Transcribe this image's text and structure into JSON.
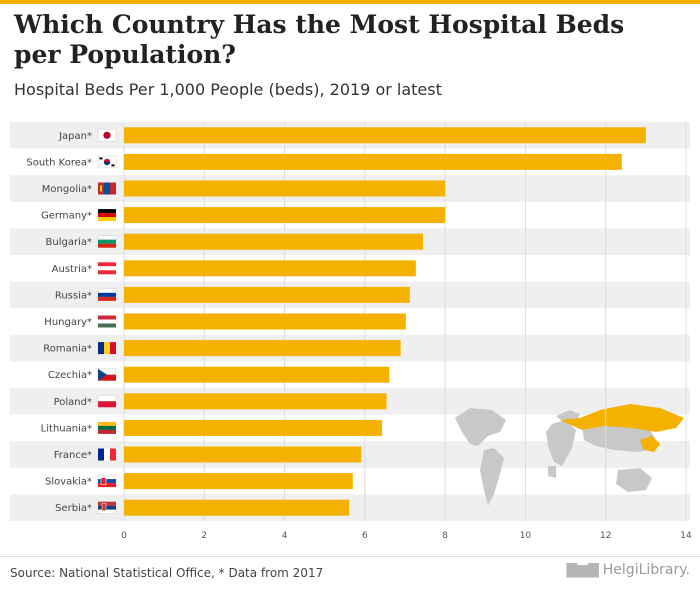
{
  "header": {
    "title": "Which Country Has the Most Hospital Beds per Population?",
    "subtitle": "Hospital Beds Per 1,000 People (beds), 2019 or latest"
  },
  "footer": {
    "source": "Source: National Statistical Office, * Data from 2017",
    "logo_text": "HelgiLibrary."
  },
  "colors": {
    "bar": "#f5b100",
    "row_band": "#efefef",
    "map_land": "#c8c8c8",
    "map_highlight": "#f5b100"
  },
  "chart_data": {
    "type": "bar",
    "orientation": "horizontal",
    "categories": [
      "Japan*",
      "South Korea*",
      "Mongolia*",
      "Germany*",
      "Bulgaria*",
      "Austria*",
      "Russia*",
      "Hungary*",
      "Romania*",
      "Czechia*",
      "Poland*",
      "Lithuania*",
      "France*",
      "Slovakia*",
      "Serbia*"
    ],
    "flags": [
      "japan-flag-icon",
      "south-korea-flag-icon",
      "mongolia-flag-icon",
      "germany-flag-icon",
      "bulgaria-flag-icon",
      "austria-flag-icon",
      "russia-flag-icon",
      "hungary-flag-icon",
      "romania-flag-icon",
      "czechia-flag-icon",
      "poland-flag-icon",
      "lithuania-flag-icon",
      "france-flag-icon",
      "slovakia-flag-icon",
      "serbia-flag-icon"
    ],
    "values": [
      13.0,
      12.4,
      8.0,
      8.0,
      7.45,
      7.27,
      7.12,
      7.02,
      6.89,
      6.61,
      6.54,
      6.43,
      5.91,
      5.7,
      5.61
    ],
    "xlim": [
      0,
      14
    ],
    "xticks": [
      "0",
      "2",
      "4",
      "6",
      "8",
      "10",
      "12",
      "14"
    ],
    "xlabel": "",
    "ylabel": "",
    "grid": true,
    "legend": "none"
  }
}
